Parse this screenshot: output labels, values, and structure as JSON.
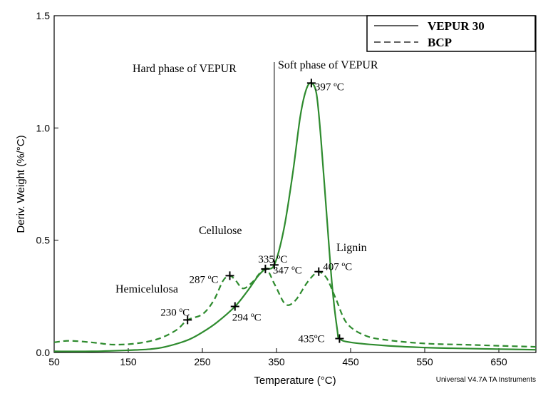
{
  "chart_data": {
    "type": "line",
    "xlabel": "Temperature (°C)",
    "ylabel": "Deriv. Weight (%/°C)",
    "xlim": [
      50,
      700
    ],
    "ylim": [
      0,
      1.5
    ],
    "xticks": [
      50,
      150,
      250,
      350,
      450,
      550,
      650
    ],
    "yticks": [
      0.0,
      0.5,
      1.0,
      1.5
    ],
    "ytick_labels": [
      "0.0",
      "0.5",
      "1.0",
      "1.5"
    ],
    "grid": false,
    "legend_position": "top-right",
    "series": [
      {
        "name": "VEPUR 30",
        "style": "solid",
        "color": "#2e8b2e",
        "x": [
          50,
          100,
          150,
          180,
          200,
          230,
          250,
          270,
          294,
          310,
          325,
          335,
          347,
          360,
          372,
          382,
          390,
          397,
          404,
          410,
          418,
          425,
          432,
          435,
          450,
          500,
          550,
          600,
          650,
          700
        ],
        "y": [
          0.005,
          0.005,
          0.01,
          0.015,
          0.025,
          0.055,
          0.09,
          0.135,
          0.205,
          0.27,
          0.34,
          0.372,
          0.39,
          0.55,
          0.8,
          1.05,
          1.17,
          1.2,
          1.15,
          0.95,
          0.6,
          0.3,
          0.1,
          0.062,
          0.045,
          0.03,
          0.022,
          0.018,
          0.015,
          0.012
        ]
      },
      {
        "name": "BCP",
        "style": "dashed",
        "color": "#2e8b2e",
        "x": [
          50,
          70,
          100,
          130,
          160,
          190,
          215,
          230,
          250,
          265,
          278,
          287,
          295,
          305,
          318,
          335,
          348,
          362,
          375,
          390,
          400,
          407,
          418,
          430,
          445,
          470,
          500,
          550,
          600,
          650,
          700
        ],
        "y": [
          0.045,
          0.052,
          0.045,
          0.035,
          0.04,
          0.06,
          0.1,
          0.145,
          0.17,
          0.23,
          0.32,
          0.342,
          0.32,
          0.285,
          0.315,
          0.372,
          0.3,
          0.215,
          0.23,
          0.305,
          0.345,
          0.36,
          0.33,
          0.24,
          0.13,
          0.075,
          0.055,
          0.04,
          0.035,
          0.03,
          0.025
        ]
      }
    ],
    "points": [
      {
        "label": "230 ºC",
        "x": 230,
        "y": 0.145
      },
      {
        "label": "287 ºC",
        "x": 287,
        "y": 0.342
      },
      {
        "label": "294 ºC",
        "x": 294,
        "y": 0.205
      },
      {
        "label": "335 ºC",
        "x": 335,
        "y": 0.372
      },
      {
        "label": "347 ºC",
        "x": 347,
        "y": 0.39
      },
      {
        "label": "397 ºC",
        "x": 397,
        "y": 1.2
      },
      {
        "label": "407 ºC",
        "x": 407,
        "y": 0.36
      },
      {
        "label": "435ºC",
        "x": 435,
        "y": 0.062
      }
    ],
    "divider_x": 347,
    "annotations": {
      "hard_phase": "Hard phase of VEPUR",
      "soft_phase": "Soft phase of VEPUR",
      "cellulose": "Cellulose",
      "lignin": "Lignin",
      "hemicellulose": "Hemicelulosa"
    },
    "credit": "Universal V4.7A TA Instruments"
  }
}
